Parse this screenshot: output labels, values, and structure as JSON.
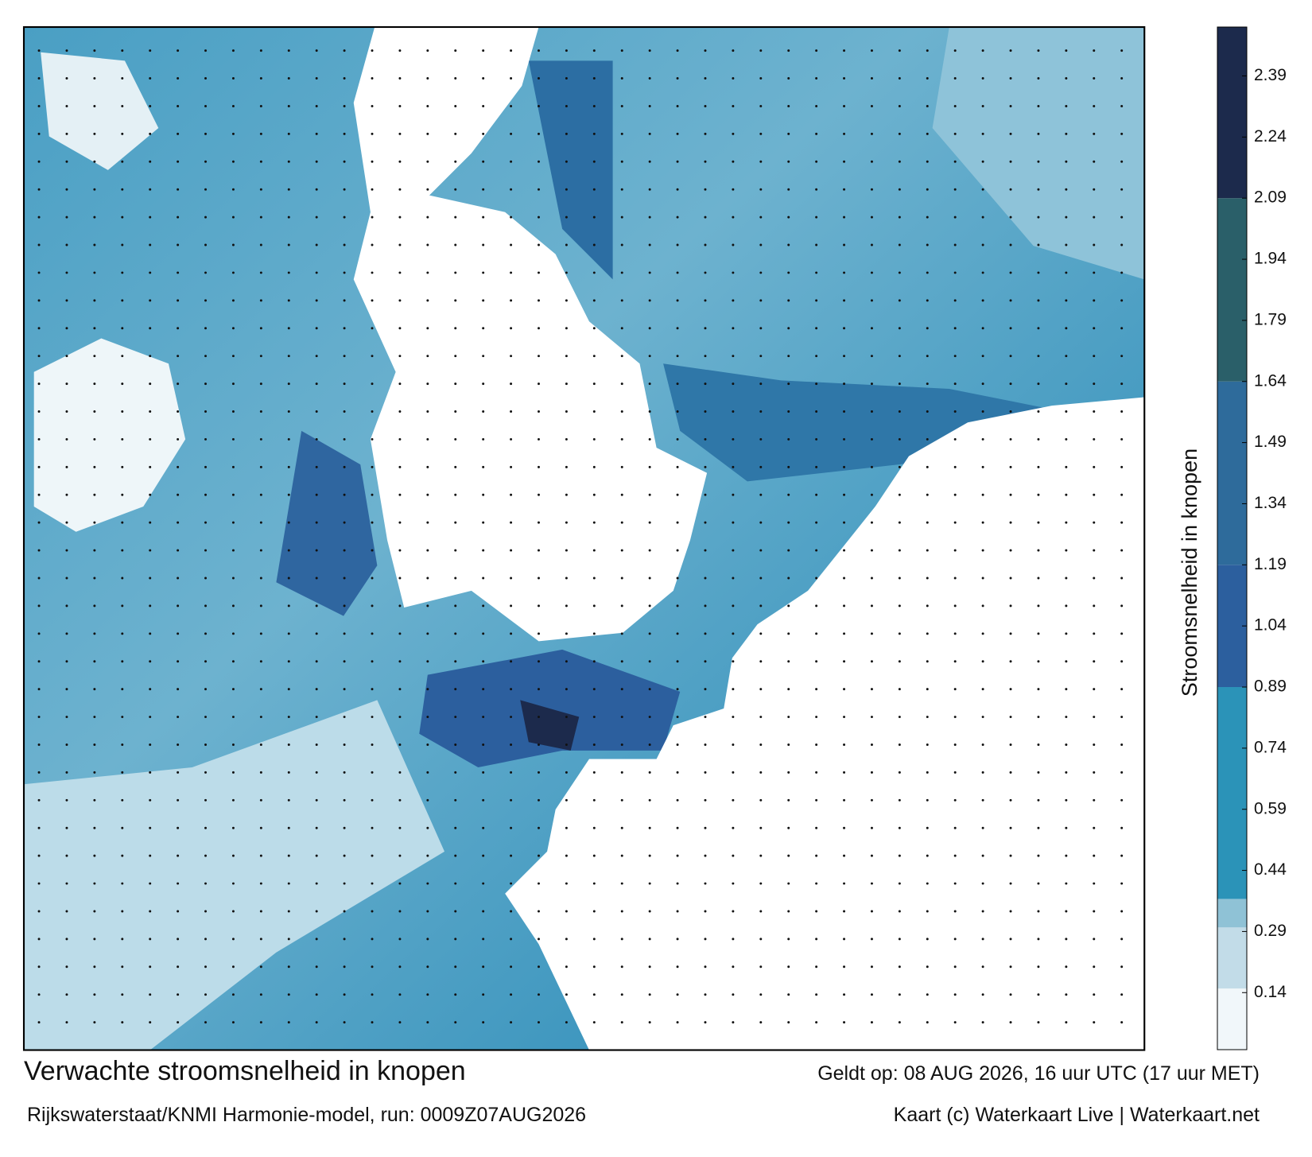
{
  "colorbar": {
    "label": "Stroomsnelheid in knopen",
    "range": [
      0,
      2.51
    ],
    "ticks": [
      0.14,
      0.29,
      0.44,
      0.59,
      0.74,
      0.89,
      1.04,
      1.19,
      1.34,
      1.49,
      1.64,
      1.79,
      1.94,
      2.09,
      2.24,
      2.39
    ],
    "bands": [
      {
        "from": 0,
        "to": 0.15,
        "color": "#f1f7fa"
      },
      {
        "from": 0.15,
        "to": 0.3,
        "color": "#c2dce8"
      },
      {
        "from": 0.3,
        "to": 0.37,
        "color": "#8fc2d6"
      },
      {
        "from": 0.37,
        "to": 0.89,
        "color": "#2b93b8"
      },
      {
        "from": 0.89,
        "to": 1.19,
        "color": "#2c5f9e"
      },
      {
        "from": 1.19,
        "to": 1.64,
        "color": "#2e6b9b"
      },
      {
        "from": 1.64,
        "to": 2.09,
        "color": "#2a5f69"
      },
      {
        "from": 2.09,
        "to": 2.51,
        "color": "#1c2a4c"
      }
    ]
  },
  "footer": {
    "title": "Verwachte stroomsnelheid in knopen",
    "valid_time": "Geldt op: 08 AUG 2026, 16 uur UTC (17 uur MET)",
    "model_run": "Rijkswaterstaat/KNMI Harmonie-model, run: 0009Z07AUG2026",
    "credit": "Kaart (c) Waterkaart Live | Waterkaart.net"
  }
}
